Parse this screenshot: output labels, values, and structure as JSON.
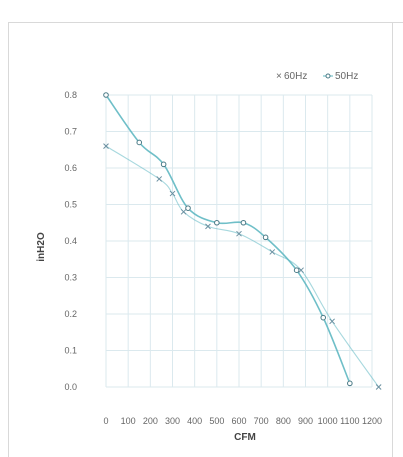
{
  "chart_data": {
    "type": "line",
    "xlabel": "CFM",
    "ylabel": "inH2O",
    "x_ticks": [
      "0",
      "100",
      "200",
      "300",
      "400",
      "500",
      "600",
      "700",
      "800",
      "900",
      "1000",
      "1100",
      "1200"
    ],
    "y_ticks": [
      "0.0",
      "0.1",
      "0.2",
      "0.3",
      "0.4",
      "0.5",
      "0.6",
      "0.7",
      "0.8"
    ],
    "xlim": [
      0,
      1200
    ],
    "ylim": [
      0,
      0.8
    ],
    "grid": true,
    "legend_position": "top-right",
    "series": [
      {
        "name": "60Hz",
        "marker": "x",
        "color": "#5fb8c2",
        "points": [
          [
            0,
            0.66
          ],
          [
            240,
            0.57
          ],
          [
            300,
            0.53
          ],
          [
            350,
            0.48
          ],
          [
            460,
            0.44
          ],
          [
            600,
            0.42
          ],
          [
            750,
            0.37
          ],
          [
            880,
            0.32
          ],
          [
            1020,
            0.18
          ],
          [
            1230,
            0.0
          ]
        ]
      },
      {
        "name": "50Hz",
        "marker": "o",
        "color": "#5fb8c2",
        "points": [
          [
            0,
            0.8
          ],
          [
            150,
            0.67
          ],
          [
            260,
            0.61
          ],
          [
            370,
            0.49
          ],
          [
            500,
            0.45
          ],
          [
            620,
            0.45
          ],
          [
            720,
            0.41
          ],
          [
            860,
            0.32
          ],
          [
            980,
            0.19
          ],
          [
            1100,
            0.01
          ]
        ]
      }
    ]
  }
}
